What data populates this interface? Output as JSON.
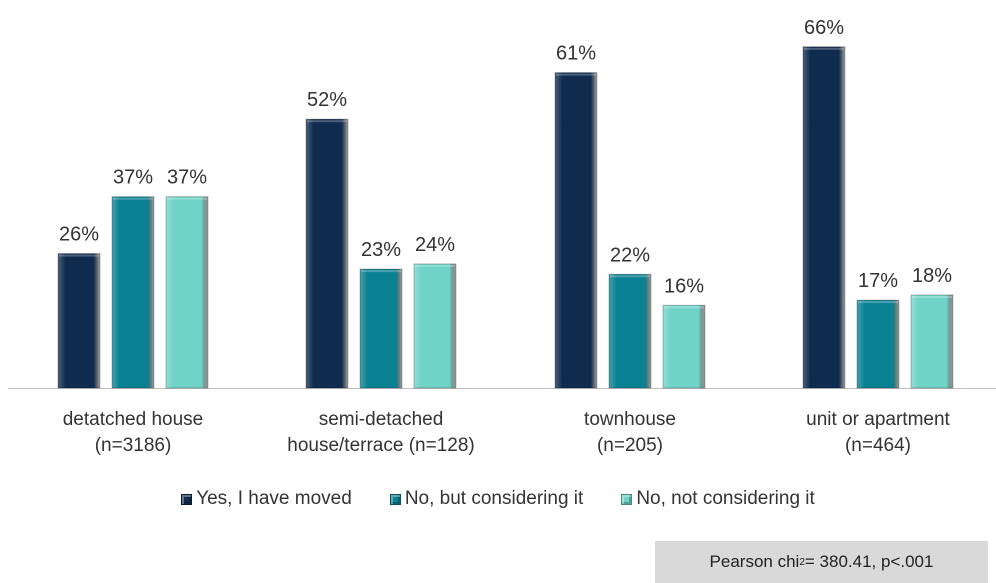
{
  "chart_data": {
    "type": "bar",
    "categories": [
      [
        "detatched house",
        "(n=3186)"
      ],
      [
        "semi-detached",
        "house/terrace (n=128)"
      ],
      [
        "townhouse",
        "(n=205)"
      ],
      [
        "unit or apartment",
        "(n=464)"
      ]
    ],
    "series": [
      {
        "name": "Yes, I have moved",
        "values": [
          26,
          52,
          61,
          66
        ],
        "color": "#0f2b4e"
      },
      {
        "name": "No, but considering it",
        "values": [
          37,
          23,
          22,
          17
        ],
        "color": "#0a8192"
      },
      {
        "name": "No, not considering it",
        "values": [
          37,
          24,
          16,
          18
        ],
        "color": "#6fd3c7"
      }
    ],
    "value_suffix": "%",
    "ylim": [
      0,
      100
    ],
    "grid": false,
    "legend_position": "bottom"
  },
  "note": {
    "prefix": "Pearson chi",
    "sup": "2",
    "suffix": " = 380.41, p<.001"
  }
}
